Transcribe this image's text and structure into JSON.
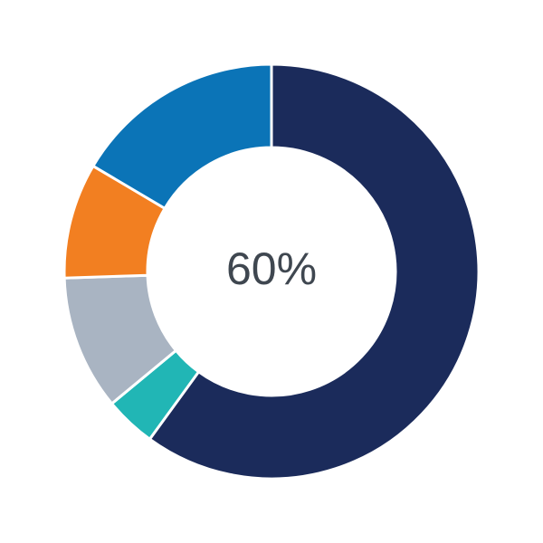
{
  "chart_data": {
    "type": "pie",
    "variant": "donut",
    "center_label": "60%",
    "slices": [
      {
        "value": 60,
        "color": "#1b2b5b"
      },
      {
        "value": 4,
        "color": "#21b6b5"
      },
      {
        "value": 10.5,
        "color": "#a9b4c2"
      },
      {
        "value": 9,
        "color": "#f27f21"
      },
      {
        "value": 16.5,
        "color": "#0b74b7"
      }
    ],
    "start_angle_deg": 0,
    "direction": "clockwise"
  }
}
